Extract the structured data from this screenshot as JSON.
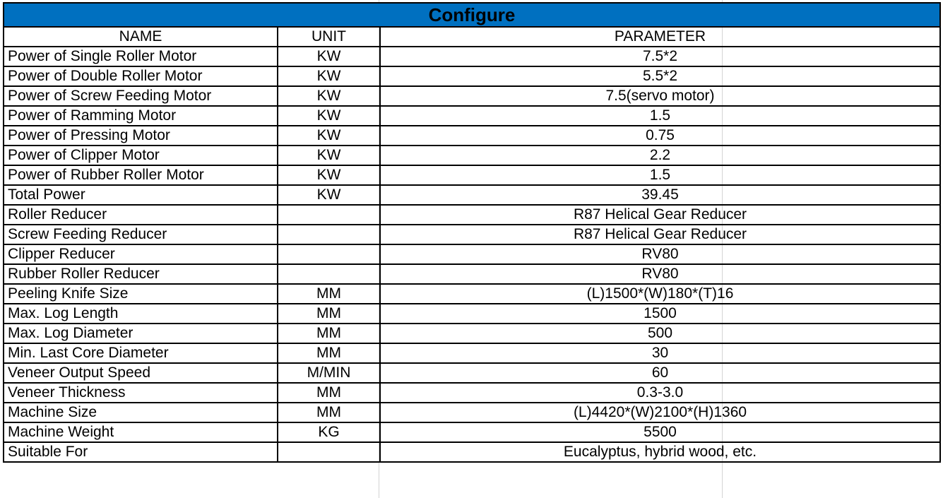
{
  "title": "Configure",
  "colors": {
    "header_bg": "#0070C0"
  },
  "columns": [
    "NAME",
    "UNIT",
    "PARAMETER"
  ],
  "rows": [
    [
      "Power of Single Roller Motor",
      "KW",
      "7.5*2"
    ],
    [
      "Power of Double Roller Motor",
      "KW",
      "5.5*2"
    ],
    [
      "Power of Screw Feeding Motor",
      "KW",
      "7.5(servo motor)"
    ],
    [
      "Power of Ramming Motor",
      "KW",
      "1.5"
    ],
    [
      "Power of Pressing Motor",
      "KW",
      "0.75"
    ],
    [
      "Power of Clipper Motor",
      "KW",
      "2.2"
    ],
    [
      "Power of Rubber Roller Motor",
      "KW",
      "1.5"
    ],
    [
      "Total Power",
      "KW",
      "39.45"
    ],
    [
      "Roller Reducer",
      "",
      "R87 Helical Gear Reducer"
    ],
    [
      "Screw Feeding Reducer",
      "",
      "R87 Helical Gear Reducer"
    ],
    [
      "Clipper Reducer",
      "",
      "RV80"
    ],
    [
      "Rubber Roller Reducer",
      "",
      "RV80"
    ],
    [
      "Peeling Knife Size",
      "MM",
      "(L)1500*(W)180*(T)16"
    ],
    [
      "Max. Log Length",
      "MM",
      "1500"
    ],
    [
      "Max. Log Diameter",
      "MM",
      "500"
    ],
    [
      "Min. Last Core Diameter",
      "MM",
      "30"
    ],
    [
      "Veneer Output Speed",
      "M/MIN",
      "60"
    ],
    [
      "Veneer Thickness",
      "MM",
      "0.3-3.0"
    ],
    [
      "Machine Size",
      "MM",
      "(L)4420*(W)2100*(H)1360"
    ],
    [
      "Machine Weight",
      "KG",
      "5500"
    ],
    [
      "Suitable For",
      "",
      "Eucalyptus, hybrid wood, etc."
    ]
  ]
}
